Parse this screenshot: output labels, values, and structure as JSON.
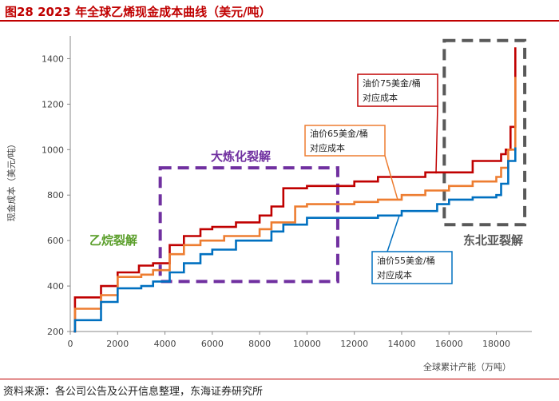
{
  "header": {
    "title": "图28  2023 年全球乙烯现金成本曲线（美元/吨）"
  },
  "footer": {
    "source": "资料来源：各公司公告及公开信息整理，东海证券研究所"
  },
  "chart_data": {
    "type": "line",
    "title": "图28  2023 年全球乙烯现金成本曲线（美元/吨）",
    "xlabel": "全球累计产能（万吨）",
    "ylabel": "现金成本（美元/吨）",
    "xlim": [
      0,
      19500
    ],
    "ylim": [
      200,
      1500
    ],
    "xticks": [
      0,
      2000,
      4000,
      6000,
      8000,
      10000,
      12000,
      14000,
      16000,
      18000
    ],
    "yticks": [
      200,
      400,
      600,
      800,
      1000,
      1200,
      1400
    ],
    "grid": false,
    "series": [
      {
        "name": "油价75美金/桶对应成本",
        "color": "#c00000",
        "x": [
          150,
          200,
          1300,
          1300,
          2000,
          2900,
          3500,
          4200,
          4800,
          5500,
          6000,
          7000,
          8000,
          8500,
          9000,
          10000,
          12000,
          13000,
          15000,
          17000,
          18200,
          18400,
          18600,
          18800
        ],
        "y": [
          200,
          350,
          350,
          400,
          460,
          490,
          500,
          580,
          620,
          650,
          660,
          680,
          710,
          750,
          830,
          840,
          860,
          880,
          900,
          950,
          980,
          1000,
          1100,
          1450
        ]
      },
      {
        "name": "油价65美金/桶对应成本",
        "color": "#ed7d31",
        "x": [
          150,
          200,
          1300,
          1300,
          2000,
          3000,
          3500,
          4200,
          4800,
          5500,
          6500,
          8000,
          8500,
          9500,
          10000,
          12000,
          13000,
          14000,
          15000,
          16000,
          17000,
          18000,
          18200,
          18500,
          18800
        ],
        "y": [
          200,
          300,
          300,
          360,
          440,
          450,
          470,
          540,
          580,
          600,
          620,
          650,
          680,
          750,
          760,
          770,
          780,
          800,
          820,
          840,
          860,
          880,
          920,
          1000,
          1320
        ]
      },
      {
        "name": "油价55美金/桶对应成本",
        "color": "#0070c0",
        "x": [
          150,
          200,
          1300,
          1300,
          2000,
          3000,
          3500,
          4200,
          4800,
          5500,
          6000,
          7000,
          8500,
          9000,
          10000,
          12000,
          13000,
          14000,
          15500,
          16000,
          17000,
          18000,
          18200,
          18500,
          18800
        ],
        "y": [
          200,
          250,
          250,
          330,
          390,
          400,
          420,
          460,
          500,
          540,
          560,
          600,
          640,
          670,
          700,
          700,
          710,
          730,
          760,
          780,
          790,
          800,
          850,
          950,
          1010
        ]
      }
    ],
    "regions": [
      {
        "label": "乙烷裂解",
        "color": "#5a9e2a"
      },
      {
        "label": "大炼化裂解",
        "color": "#7030a0",
        "x": [
          3800,
          11300
        ],
        "y": [
          420,
          920
        ]
      },
      {
        "label": "东北亚裂解",
        "color": "#595959",
        "x": [
          15800,
          19200
        ],
        "y": [
          670,
          1480
        ]
      }
    ],
    "annotations": [
      {
        "line1": "油价75美金/桶",
        "line2": "对应成本",
        "border_color": "#c00000"
      },
      {
        "line1": "油价65美金/桶",
        "line2": "对应成本",
        "border_color": "#ed7d31"
      },
      {
        "line1": "油价55美金/桶",
        "line2": "对应成本",
        "border_color": "#0070c0"
      }
    ]
  }
}
